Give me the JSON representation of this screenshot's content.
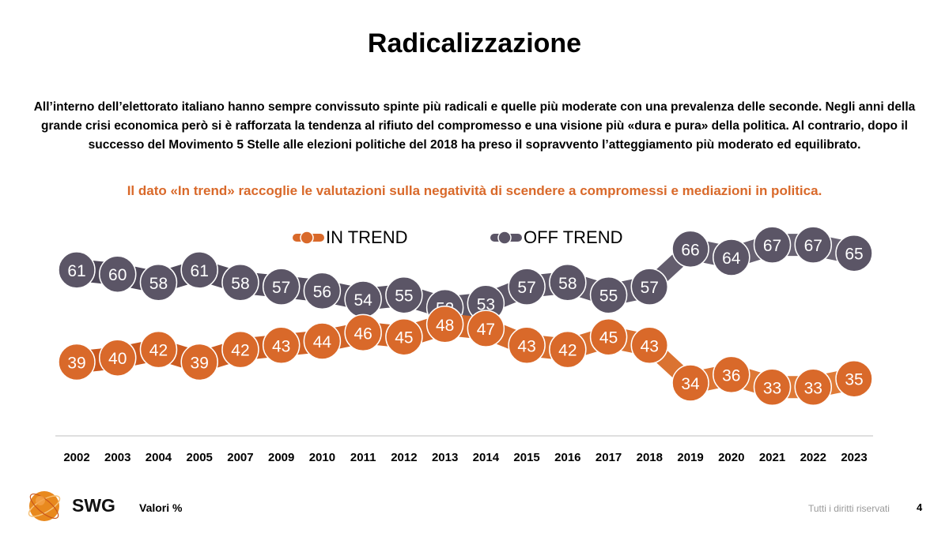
{
  "header": {
    "title": "Radicalizzazione",
    "intro_lines": [
      "All’interno dell’elettorato italiano hanno sempre convissuto spinte più radicali e quelle più moderate con una prevalenza delle seconde. Negli anni della",
      "grande crisi economica però si è rafforzata la tendenza al rifiuto del compromesso e una visione più «dura e pura» della politica. Al contrario, dopo il",
      "successo del Movimento 5 Stelle alle elezioni politiche del 2018 ha preso il sopravvento l’atteggiamento più moderato ed equilibrato."
    ],
    "note": "Il dato «In trend» raccoglie le valutazioni sulla negatività di scendere a compromessi e mediazioni in politica."
  },
  "chart_data": {
    "type": "line",
    "categories": [
      "2002",
      "2003",
      "2004",
      "2005",
      "2007",
      "2009",
      "2010",
      "2011",
      "2012",
      "2013",
      "2014",
      "2015",
      "2016",
      "2017",
      "2018",
      "2019",
      "2020",
      "2021",
      "2022",
      "2023"
    ],
    "series": [
      {
        "name": "IN TREND",
        "color": "#d9692a",
        "values": [
          39,
          40,
          42,
          39,
          42,
          43,
          44,
          46,
          45,
          48,
          47,
          43,
          42,
          45,
          43,
          34,
          36,
          33,
          33,
          35
        ]
      },
      {
        "name": "OFF TREND",
        "color": "#5b5566",
        "values": [
          61,
          60,
          58,
          61,
          58,
          57,
          56,
          54,
          55,
          52,
          53,
          57,
          58,
          55,
          57,
          66,
          64,
          67,
          67,
          65
        ]
      }
    ],
    "legend_position": "top",
    "grid": false
  },
  "footer": {
    "brand": "SWG",
    "unit": "Valori %",
    "rights": "Tutti i diritti riservati",
    "page": "4"
  }
}
